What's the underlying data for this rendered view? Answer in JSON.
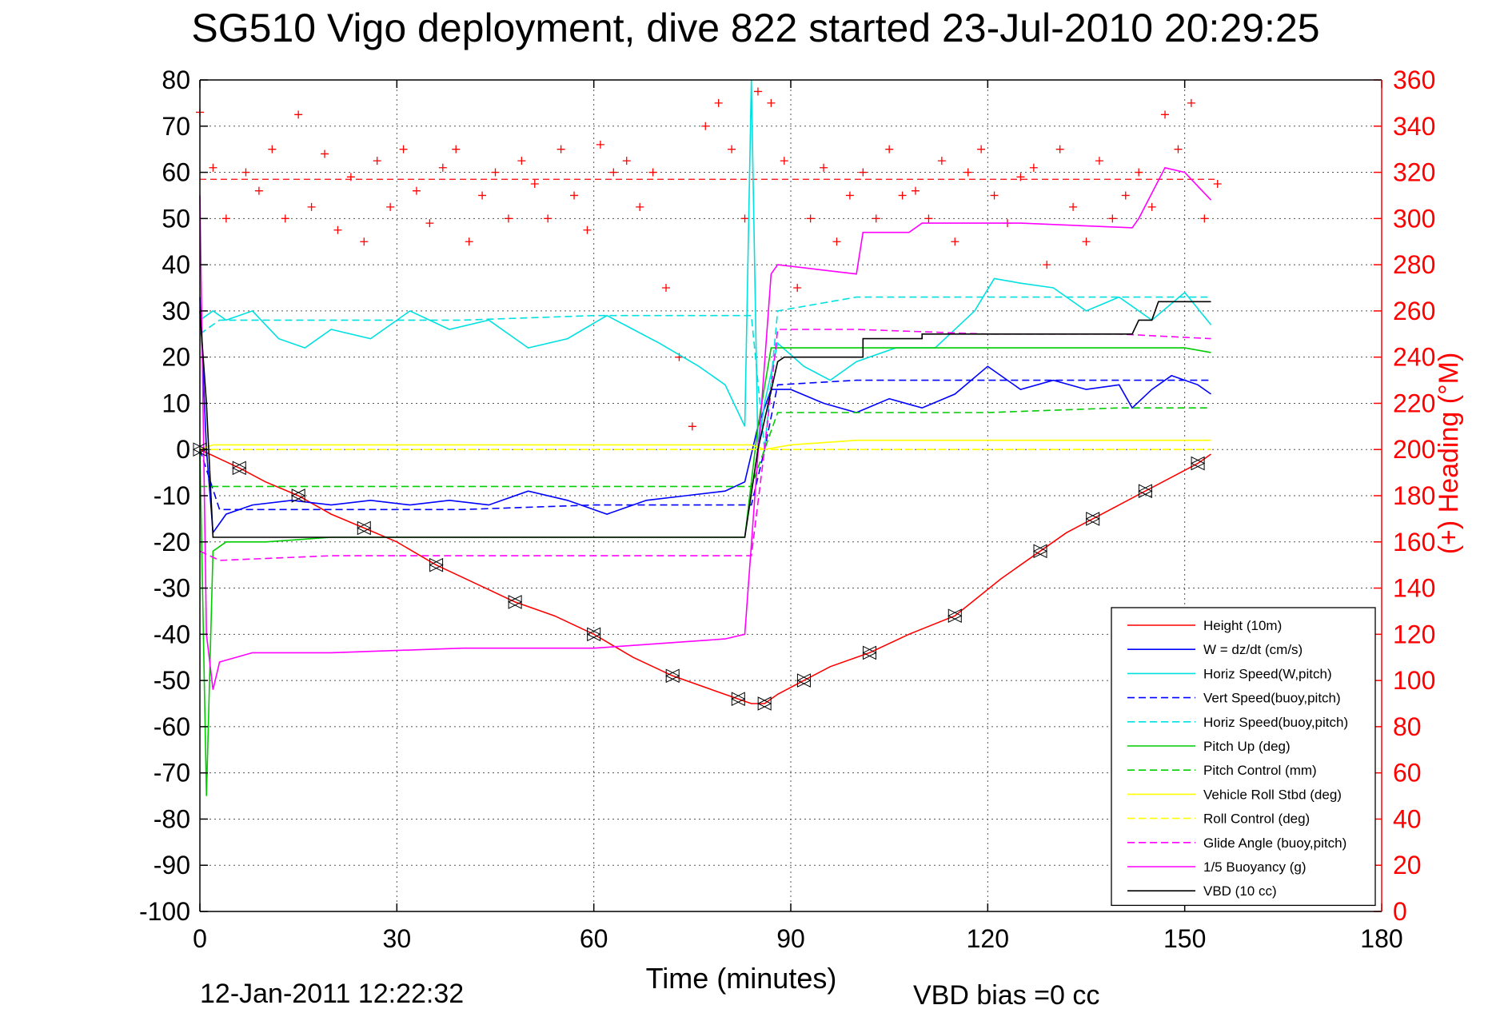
{
  "chart_data": {
    "type": "line",
    "title": "SG510 Vigo deployment, dive 822 started 23-Jul-2010 20:29:25",
    "xlabel": "Time (minutes)",
    "ylabel_right": "(+) Heading (°M)",
    "footer_left": "12-Jan-2011 12:22:32",
    "footer_right": "VBD bias =0 cc",
    "xlim": [
      0,
      180
    ],
    "ylim": [
      -100,
      80
    ],
    "ylim_right": [
      0,
      360
    ],
    "x_ticks": [
      "0",
      "30",
      "60",
      "90",
      "120",
      "150",
      "180"
    ],
    "y_ticks": [
      "80",
      "70",
      "60",
      "50",
      "40",
      "30",
      "20",
      "10",
      "0",
      "-10",
      "-20",
      "-30",
      "-40",
      "-50",
      "-60",
      "-70",
      "-80",
      "-90",
      "-100"
    ],
    "y_ticks_right": [
      "360",
      "340",
      "320",
      "300",
      "280",
      "260",
      "240",
      "220",
      "200",
      "180",
      "160",
      "140",
      "120",
      "100",
      "80",
      "60",
      "40",
      "20",
      "0"
    ],
    "grid": true,
    "legend_position": "bottom-right",
    "heading_reference": 317,
    "series": [
      {
        "name": "Height (10m)",
        "color": "#ff0000",
        "style": "solid",
        "x": [
          0,
          3,
          6,
          10,
          15,
          20,
          25,
          30,
          36,
          42,
          48,
          54,
          60,
          66,
          72,
          78,
          82,
          84,
          86,
          88,
          92,
          96,
          102,
          108,
          115,
          122,
          128,
          132,
          136,
          140,
          144,
          148,
          152,
          154
        ],
        "y": [
          0,
          -2,
          -4,
          -7,
          -10,
          -14,
          -17,
          -20,
          -25,
          -29,
          -33,
          -36,
          -40,
          -45,
          -49,
          -52,
          -54,
          -55,
          -55,
          -53,
          -50,
          -47,
          -44,
          -40,
          -36,
          -28,
          -22,
          -18,
          -15,
          -12,
          -9,
          -6,
          -3,
          -1
        ]
      },
      {
        "name": "W = dz/dt (cm/s)",
        "color": "#0000ff",
        "style": "solid",
        "x": [
          0,
          1,
          2,
          4,
          8,
          14,
          20,
          26,
          32,
          38,
          44,
          50,
          56,
          62,
          68,
          74,
          80,
          83,
          85,
          87,
          90,
          95,
          100,
          105,
          110,
          115,
          120,
          125,
          130,
          135,
          140,
          142,
          145,
          148,
          152,
          154
        ],
        "y": [
          33,
          0,
          -18,
          -14,
          -12,
          -11,
          -12,
          -11,
          -12,
          -11,
          -12,
          -9,
          -11,
          -14,
          -11,
          -10,
          -9,
          -7,
          5,
          13,
          13,
          10,
          8,
          11,
          9,
          12,
          18,
          13,
          15,
          13,
          14,
          9,
          13,
          16,
          14,
          12
        ]
      },
      {
        "name": "Horiz Speed(W,pitch)",
        "color": "#00e0e0",
        "style": "solid",
        "x": [
          0,
          2,
          4,
          8,
          12,
          16,
          20,
          26,
          32,
          38,
          44,
          50,
          56,
          62,
          66,
          70,
          76,
          80,
          83,
          84,
          85,
          86,
          88,
          92,
          96,
          100,
          106,
          112,
          118,
          121,
          125,
          130,
          135,
          140,
          145,
          150,
          154
        ],
        "y": [
          28,
          30,
          28,
          30,
          24,
          22,
          26,
          24,
          30,
          26,
          28,
          22,
          24,
          29,
          26,
          23,
          18,
          14,
          5,
          80,
          0,
          10,
          23,
          18,
          15,
          19,
          22,
          22,
          30,
          37,
          36,
          35,
          30,
          33,
          28,
          34,
          27
        ]
      },
      {
        "name": "Vert Speed(buoy,pitch)",
        "color": "#0000ff",
        "style": "dashed",
        "x": [
          0,
          3,
          20,
          40,
          60,
          84,
          86,
          88,
          100,
          120,
          140,
          154
        ],
        "y": [
          0,
          -13,
          -13,
          -13,
          -12,
          -12,
          0,
          14,
          15,
          15,
          15,
          15
        ]
      },
      {
        "name": "Horiz Speed(buoy,pitch)",
        "color": "#00e0e0",
        "style": "dashed",
        "x": [
          0,
          3,
          20,
          40,
          60,
          84,
          86,
          88,
          100,
          120,
          140,
          154
        ],
        "y": [
          25,
          28,
          28,
          28,
          29,
          29,
          0,
          30,
          33,
          33,
          33,
          33
        ]
      },
      {
        "name": "Pitch Up (deg)",
        "color": "#00cc00",
        "style": "solid",
        "x": [
          0,
          1,
          2,
          4,
          10,
          20,
          30,
          40,
          50,
          60,
          70,
          80,
          83,
          85,
          87,
          90,
          100,
          110,
          120,
          130,
          140,
          150,
          154
        ],
        "y": [
          0,
          -75,
          -22,
          -20,
          -20,
          -19,
          -19,
          -19,
          -19,
          -19,
          -19,
          -19,
          -19,
          5,
          22,
          22,
          22,
          22,
          22,
          22,
          22,
          22,
          21
        ]
      },
      {
        "name": "Pitch Control (mm)",
        "color": "#00cc00",
        "style": "dashed",
        "x": [
          0,
          3,
          20,
          40,
          60,
          84,
          86,
          88,
          100,
          120,
          140,
          154
        ],
        "y": [
          -8,
          -8,
          -8,
          -8,
          -8,
          -8,
          0,
          8,
          8,
          8,
          9,
          9
        ]
      },
      {
        "name": "Vehicle Roll Stbd (deg)",
        "color": "#ffff00",
        "style": "solid",
        "x": [
          0,
          2,
          10,
          20,
          30,
          40,
          50,
          60,
          70,
          80,
          84,
          86,
          90,
          100,
          110,
          120,
          130,
          140,
          150,
          154
        ],
        "y": [
          0,
          1,
          1,
          1,
          1,
          1,
          1,
          1,
          1,
          1,
          1,
          0,
          1,
          2,
          2,
          2,
          2,
          2,
          2,
          2
        ]
      },
      {
        "name": "Roll Control (deg)",
        "color": "#ffff00",
        "style": "dashed",
        "x": [
          0,
          2,
          20,
          40,
          60,
          80,
          84,
          86,
          90,
          110,
          130,
          154
        ],
        "y": [
          0,
          0,
          0,
          0,
          0,
          0,
          0,
          0,
          0,
          0,
          0,
          0
        ]
      },
      {
        "name": "Glide Angle (buoy,pitch)",
        "color": "#ff00ff",
        "style": "dashed",
        "x": [
          0,
          3,
          20,
          40,
          60,
          84,
          86,
          88,
          100,
          120,
          140,
          154
        ],
        "y": [
          -22,
          -24,
          -23,
          -23,
          -23,
          -23,
          0,
          26,
          26,
          25,
          25,
          24
        ]
      },
      {
        "name": "1/5 Buoyancy (g)",
        "color": "#ff00ff",
        "style": "solid",
        "x": [
          0,
          1,
          2,
          3,
          8,
          20,
          40,
          60,
          80,
          83,
          87,
          88,
          94,
          100,
          101,
          108,
          110,
          125,
          142,
          143,
          147,
          150,
          152,
          154
        ],
        "y": [
          55,
          -40,
          -52,
          -46,
          -44,
          -44,
          -43,
          -43,
          -41,
          -40,
          38,
          40,
          39,
          38,
          47,
          47,
          49,
          49,
          48,
          50,
          61,
          60,
          57,
          54
        ]
      },
      {
        "name": "VBD (10 cc)",
        "color": "#000000",
        "style": "solid",
        "x": [
          0,
          1,
          2,
          3,
          20,
          40,
          60,
          83,
          85,
          88,
          89,
          101,
          101,
          110,
          110,
          125,
          142,
          143,
          145,
          146,
          154
        ],
        "y": [
          30,
          10,
          -19,
          -19,
          -19,
          -19,
          -19,
          -19,
          0,
          19,
          20,
          20,
          24,
          24,
          25,
          25,
          25,
          28,
          28,
          32,
          32
        ]
      }
    ],
    "heading_points": {
      "x": [
        0,
        2,
        4,
        7,
        9,
        11,
        13,
        15,
        17,
        19,
        21,
        23,
        25,
        27,
        29,
        31,
        33,
        35,
        37,
        39,
        41,
        43,
        45,
        47,
        49,
        51,
        53,
        55,
        57,
        59,
        61,
        63,
        65,
        67,
        69,
        71,
        73,
        75,
        77,
        79,
        81,
        83,
        85,
        87,
        89,
        91,
        93,
        95,
        97,
        99,
        101,
        103,
        105,
        107,
        109,
        111,
        113,
        115,
        117,
        119,
        121,
        123,
        125,
        127,
        129,
        131,
        133,
        135,
        137,
        139,
        141,
        143,
        145,
        147,
        149,
        151,
        153,
        155
      ],
      "y": [
        346,
        322,
        300,
        320,
        312,
        330,
        300,
        345,
        305,
        328,
        295,
        318,
        290,
        325,
        305,
        330,
        312,
        298,
        322,
        330,
        290,
        310,
        320,
        300,
        325,
        315,
        300,
        330,
        310,
        295,
        332,
        320,
        325,
        305,
        320,
        270,
        240,
        210,
        340,
        350,
        330,
        300,
        355,
        350,
        325,
        270,
        300,
        322,
        290,
        310,
        320,
        300,
        330,
        310,
        312,
        300,
        325,
        290,
        320,
        330,
        310,
        298,
        318,
        322,
        280,
        330,
        305,
        290,
        325,
        300,
        310,
        320,
        305,
        345,
        330,
        350,
        300,
        315
      ]
    }
  }
}
